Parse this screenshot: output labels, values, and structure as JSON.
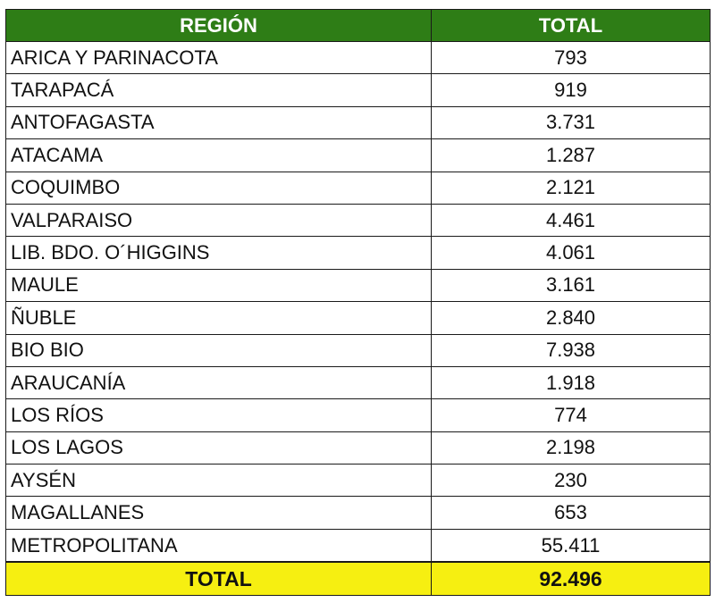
{
  "table": {
    "headers": {
      "region": "REGIÓN",
      "total": "TOTAL"
    },
    "rows": [
      {
        "region": "ARICA Y PARINACOTA",
        "total": "793"
      },
      {
        "region": "TARAPACÁ",
        "total": "919"
      },
      {
        "region": "ANTOFAGASTA",
        "total": "3.731"
      },
      {
        "region": "ATACAMA",
        "total": "1.287"
      },
      {
        "region": "COQUIMBO",
        "total": "2.121"
      },
      {
        "region": "VALPARAISO",
        "total": "4.461"
      },
      {
        "region": "LIB. BDO. O´HIGGINS",
        "total": "4.061"
      },
      {
        "region": "MAULE",
        "total": "3.161"
      },
      {
        "region": "ÑUBLE",
        "total": "2.840"
      },
      {
        "region": "BIO BIO",
        "total": "7.938"
      },
      {
        "region": "ARAUCANÍA",
        "total": "1.918"
      },
      {
        "region": "LOS RÍOS",
        "total": "774"
      },
      {
        "region": "LOS LAGOS",
        "total": "2.198"
      },
      {
        "region": "AYSÉN",
        "total": "230"
      },
      {
        "region": "MAGALLANES",
        "total": "653"
      },
      {
        "region": "METROPOLITANA",
        "total": "55.411"
      }
    ],
    "footer": {
      "label": "TOTAL",
      "value": "92.496"
    }
  },
  "colors": {
    "header_bg": "#2e7d16",
    "header_text": "#ffffff",
    "footer_bg": "#f6ef11",
    "border": "#1a1a1a"
  }
}
